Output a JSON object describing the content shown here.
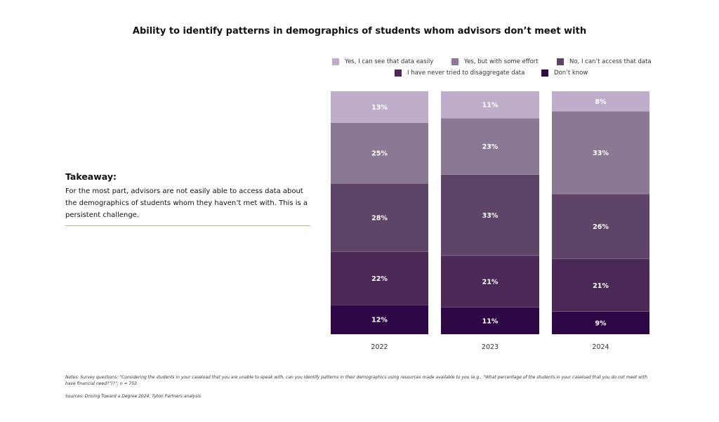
{
  "title": "Ability to identify patterns in demographics of students whom advisors don’t meet with",
  "legend": [
    {
      "label": "Yes, I can see that data easily",
      "color": "#bfaecb"
    },
    {
      "label": "Yes, but with some effort",
      "color": "#8b7894"
    },
    {
      "label": "No, I can’t access that data",
      "color": "#5e4567"
    },
    {
      "label": "I have never tried to disaggregate data",
      "color": "#4a2957"
    },
    {
      "label": "Don’t know",
      "color": "#2d0845"
    }
  ],
  "takeaway": {
    "heading": "Takeaway:",
    "body": "For the most part, advisors are not easily able to access data about the demographics of students whom they haven’t met with. This is a persistent challenge."
  },
  "chart_data": {
    "type": "bar",
    "stacked": true,
    "categories": [
      "2022",
      "2023",
      "2024"
    ],
    "series": [
      {
        "name": "Yes, I can see that data easily",
        "values": [
          13,
          11,
          8
        ],
        "labels": [
          "13%",
          "11%",
          "8%"
        ],
        "color": "#bfaecb"
      },
      {
        "name": "Yes, but with some effort",
        "values": [
          25,
          23,
          33
        ],
        "labels": [
          "25%",
          "23%",
          "33%"
        ],
        "color": "#8b7894"
      },
      {
        "name": "No, I can’t access that data",
        "values": [
          28,
          33,
          26
        ],
        "labels": [
          "28%",
          "33%",
          "26%"
        ],
        "color": "#5e4567"
      },
      {
        "name": "I have never tried to disaggregate data",
        "values": [
          22,
          21,
          21
        ],
        "labels": [
          "22%",
          "21%",
          "21%"
        ],
        "color": "#4a2957"
      },
      {
        "name": "Don’t know",
        "values": [
          12,
          11,
          9
        ],
        "labels": [
          "12%",
          "11%",
          "9%"
        ],
        "color": "#2d0845"
      }
    ],
    "legend_position": "top",
    "grid": false
  },
  "notes": "Notes: Survey questions: “Considering the students in your caseload that you are unable to speak with, can you identify patterns in their demographics using resources made available to you (e.g., “What percentage of the students in your caseload that you do not meet with have financial need?”)?”; n = 753",
  "sources": "Sources: Driving Toward a Degree 2024, Tyton Partners analysis"
}
